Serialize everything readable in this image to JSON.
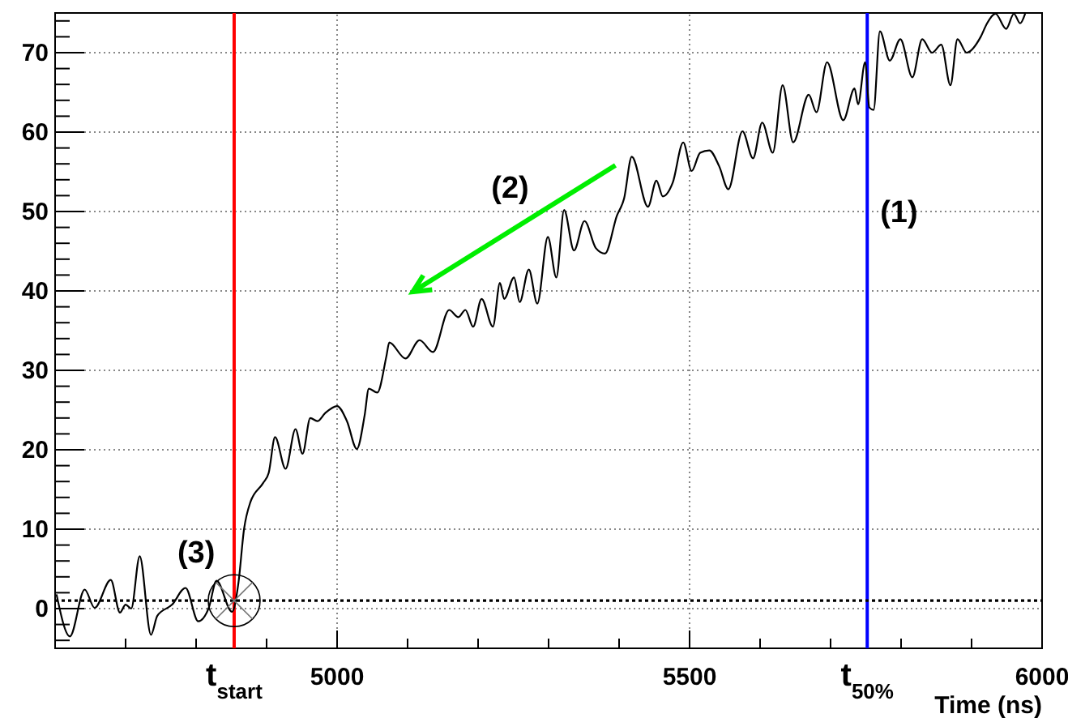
{
  "chart_data": {
    "type": "line",
    "xlabel": "Time (ns)",
    "x": [
      4602,
      4621,
      4642,
      4656,
      4679,
      4692,
      4700,
      4708,
      4720,
      4736,
      4745,
      4766,
      4785,
      4803,
      4818,
      4829,
      4851,
      4860,
      4868,
      4877,
      4895,
      4903,
      4912,
      4927,
      4941,
      4951,
      4962,
      4972,
      4983,
      5000,
      5014,
      5028,
      5039,
      5045,
      5057,
      5070,
      5074,
      5097,
      5117,
      5136,
      5159,
      5172,
      5182,
      5193,
      5205,
      5221,
      5231,
      5237,
      5251,
      5259,
      5272,
      5284,
      5299,
      5311,
      5322,
      5336,
      5351,
      5367,
      5380,
      5397,
      5407,
      5418,
      5441,
      5453,
      5462,
      5476,
      5491,
      5503,
      5515,
      5528,
      5542,
      5555,
      5575,
      5590,
      5603,
      5618,
      5632,
      5647,
      5669,
      5680,
      5695,
      5718,
      5734,
      5739,
      5749,
      5755,
      5761,
      5770,
      5784,
      5799,
      5816,
      5830,
      5844,
      5857,
      5870,
      5880,
      5893,
      5913,
      5922,
      5934,
      5949,
      5960,
      5969,
      5976
    ],
    "series": [
      {
        "color": "#000000",
        "values": [
          1.8,
          -3.5,
          2.4,
          0.1,
          3.6,
          -0.5,
          0.5,
          0,
          6.6,
          -3.3,
          -0.9,
          0.5,
          2.6,
          -1.6,
          0.1,
          3.5,
          -0.4,
          3.2,
          10,
          13.4,
          15.8,
          17.1,
          21.6,
          17.6,
          22.6,
          19.5,
          24,
          23.6,
          24.6,
          25.5,
          23.6,
          20.1,
          24.3,
          27.7,
          27.2,
          31.8,
          33.5,
          31.5,
          33.8,
          32.3,
          37.6,
          36.7,
          37.6,
          35.5,
          39,
          35.5,
          41,
          39,
          41.7,
          38.6,
          42.7,
          38.4,
          46.8,
          41.7,
          50.2,
          45.1,
          48.8,
          45.4,
          44.7,
          49.5,
          51.6,
          56.9,
          50.6,
          53.9,
          51.9,
          53.6,
          58.7,
          55.1,
          57.4,
          57.7,
          55.7,
          52.8,
          60.1,
          56.7,
          61.2,
          57.4,
          65.9,
          58.7,
          64.7,
          62.5,
          68.8,
          61.5,
          65.5,
          63.5,
          68.8,
          63.1,
          62.8,
          72.7,
          69,
          71.7,
          66.9,
          71.7,
          70,
          71,
          65.9,
          71.7,
          70,
          72,
          73.7,
          74.9,
          73,
          74.9,
          73.7,
          74.9
        ]
      }
    ],
    "xlim": [
      4600,
      6000
    ],
    "ylim": [
      -5,
      75
    ],
    "xticks": [
      {
        "value": 4700,
        "label": null
      },
      {
        "value": 4800,
        "label": null
      },
      {
        "value": 4900,
        "label": null
      },
      5000,
      {
        "value": 5100,
        "label": null
      },
      {
        "value": 5200,
        "label": null
      },
      {
        "value": 5300,
        "label": null
      },
      {
        "value": 5400,
        "label": null
      },
      5500,
      {
        "value": 5600,
        "label": null
      },
      {
        "value": 5700,
        "label": null
      },
      {
        "value": 5800,
        "label": null
      },
      {
        "value": 5900,
        "label": null
      },
      6000
    ],
    "yticks": [
      {
        "value": -4,
        "label": null
      },
      {
        "value": -2,
        "label": null
      },
      0,
      {
        "value": 2,
        "label": null
      },
      {
        "value": 4,
        "label": null
      },
      {
        "value": 6,
        "label": null
      },
      {
        "value": 8,
        "label": null
      },
      10,
      {
        "value": 12,
        "label": null
      },
      {
        "value": 14,
        "label": null
      },
      {
        "value": 16,
        "label": null
      },
      {
        "value": 18,
        "label": null
      },
      20,
      {
        "value": 22,
        "label": null
      },
      {
        "value": 24,
        "label": null
      },
      {
        "value": 26,
        "label": null
      },
      {
        "value": 28,
        "label": null
      },
      30,
      {
        "value": 32,
        "label": null
      },
      {
        "value": 34,
        "label": null
      },
      {
        "value": 36,
        "label": null
      },
      {
        "value": 38,
        "label": null
      },
      40,
      {
        "value": 42,
        "label": null
      },
      {
        "value": 44,
        "label": null
      },
      {
        "value": 46,
        "label": null
      },
      {
        "value": 48,
        "label": null
      },
      50,
      {
        "value": 52,
        "label": null
      },
      {
        "value": 54,
        "label": null
      },
      {
        "value": 56,
        "label": null
      },
      {
        "value": 58,
        "label": null
      },
      60,
      {
        "value": 62,
        "label": null
      },
      {
        "value": 64,
        "label": null
      },
      {
        "value": 66,
        "label": null
      },
      {
        "value": 68,
        "label": null
      },
      70,
      {
        "value": 72,
        "label": null
      },
      {
        "value": 74,
        "label": null
      }
    ],
    "grid": true,
    "marker": "none",
    "line_style": "solid",
    "ref_lines": [
      {
        "axis": "x",
        "value": 4854,
        "label": "t$_{start}$",
        "color": "#ff0000",
        "line_style": "solid"
      },
      {
        "axis": "x",
        "value": 5752,
        "label": "t$_{50%}$",
        "color": "#0000ff",
        "line_style": "solid"
      },
      {
        "axis": "y",
        "value": 1,
        "label": null,
        "color": "#000000",
        "line_style": "dotted"
      }
    ],
    "annotations": [
      "(1)",
      "(2)",
      "(3)"
    ]
  }
}
